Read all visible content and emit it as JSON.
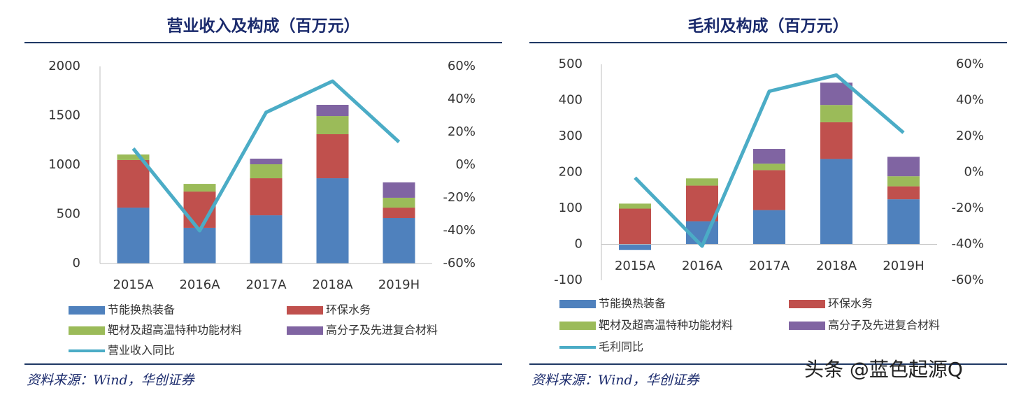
{
  "chart_data": [
    {
      "type": "bar",
      "stacked": true,
      "title": "营业收入及构成（百万元）",
      "categories": [
        "2015A",
        "2016A",
        "2017A",
        "2018A",
        "2019H"
      ],
      "series": [
        {
          "name": "节能换热装备",
          "color": "#4f81bd",
          "values": [
            567,
            362,
            489,
            865,
            461
          ]
        },
        {
          "name": "环保水务",
          "color": "#c0504d",
          "values": [
            483,
            368,
            376,
            447,
            106
          ]
        },
        {
          "name": "靶材及超高温特种功能材料",
          "color": "#9bbb59",
          "values": [
            56,
            78,
            142,
            184,
            100
          ]
        },
        {
          "name": "高分子及先进复合材料",
          "color": "#8064a2",
          "values": [
            0,
            0,
            57,
            114,
            156
          ]
        },
        {
          "name": "营业收入同比",
          "color": "#4bacc6",
          "type": "line",
          "axis": "y2",
          "values": [
            10,
            -40,
            32,
            51,
            14
          ]
        }
      ],
      "ylim": [
        0,
        2000
      ],
      "yticks": [
        0,
        500,
        1000,
        1500,
        2000
      ],
      "y2lim": [
        -60,
        60
      ],
      "y2ticks": [
        {
          "value": -60,
          "label": "-60%"
        },
        {
          "value": -40,
          "label": "-40%"
        },
        {
          "value": -20,
          "label": "-20%"
        },
        {
          "value": 0,
          "label": "0%"
        },
        {
          "value": 20,
          "label": "20%"
        },
        {
          "value": 40,
          "label": "40%"
        },
        {
          "value": 60,
          "label": "60%"
        }
      ],
      "source": "资料来源：Wind，华创证券"
    },
    {
      "type": "bar",
      "stacked": true,
      "title": "毛利及构成（百万元）",
      "categories": [
        "2015A",
        "2016A",
        "2017A",
        "2018A",
        "2019H"
      ],
      "series": [
        {
          "name": "节能换热装备",
          "color": "#4f81bd",
          "values": [
            -16,
            64,
            95,
            237,
            125
          ]
        },
        {
          "name": "环保水务",
          "color": "#c0504d",
          "values": [
            99,
            99,
            111,
            102,
            36
          ]
        },
        {
          "name": "靶材及超高温特种功能材料",
          "color": "#9bbb59",
          "values": [
            14,
            20,
            18,
            48,
            28
          ]
        },
        {
          "name": "高分子及先进复合材料",
          "color": "#8064a2",
          "values": [
            0,
            0,
            41,
            62,
            54
          ]
        },
        {
          "name": "毛利同比",
          "color": "#4bacc6",
          "type": "line",
          "axis": "y2",
          "values": [
            -3,
            -41,
            45,
            54,
            22
          ]
        }
      ],
      "ylim": [
        -100,
        500
      ],
      "yticks": [
        -100,
        0,
        100,
        200,
        300,
        400,
        500
      ],
      "y2lim": [
        -60,
        60
      ],
      "y2ticks": [
        {
          "value": -60,
          "label": "-60%"
        },
        {
          "value": -40,
          "label": "-40%"
        },
        {
          "value": -20,
          "label": "-20%"
        },
        {
          "value": 0,
          "label": "0%"
        },
        {
          "value": 20,
          "label": "20%"
        },
        {
          "value": 40,
          "label": "40%"
        },
        {
          "value": 60,
          "label": "60%"
        }
      ],
      "source": "资料来源：Wind，华创证券"
    }
  ],
  "watermark": "头条 @蓝色起源Q"
}
